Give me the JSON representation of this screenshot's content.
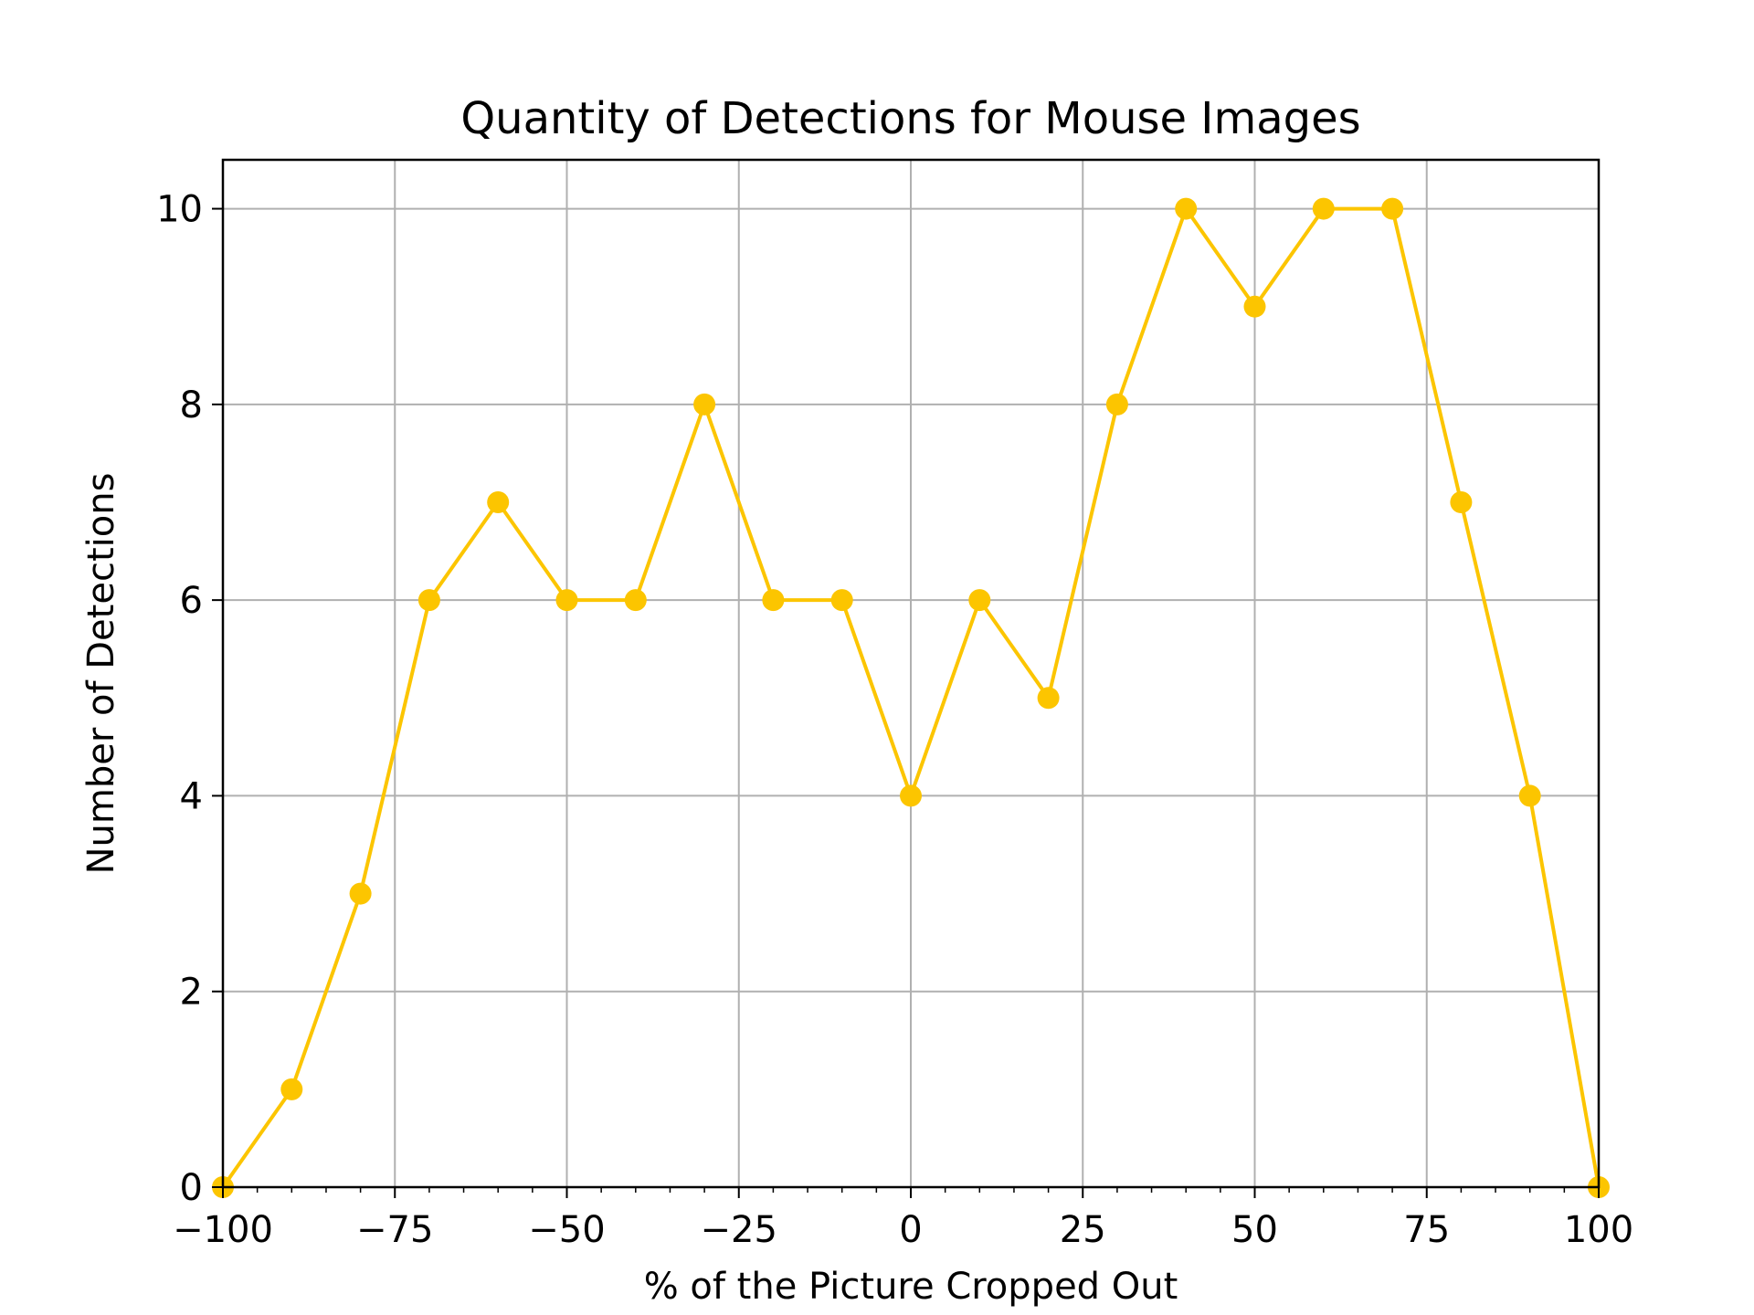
{
  "chart_data": {
    "type": "line",
    "title": "Quantity of Detections for Mouse Images",
    "xlabel": "% of the Picture Cropped Out",
    "ylabel": "Number of Detections",
    "xlim": [
      -100,
      100
    ],
    "ylim": [
      0,
      10.5
    ],
    "grid": true,
    "x_ticks": [
      -100,
      -75,
      -50,
      -25,
      0,
      25,
      50,
      75,
      100
    ],
    "x_tick_labels": [
      "−100",
      "−75",
      "−50",
      "−25",
      "0",
      "25",
      "50",
      "75",
      "100"
    ],
    "y_ticks": [
      0,
      2,
      4,
      6,
      8,
      10
    ],
    "y_tick_labels": [
      "0",
      "2",
      "4",
      "6",
      "8",
      "10"
    ],
    "series": [
      {
        "color": "#fcc500",
        "marker": "circle",
        "x": [
          -100,
          -90,
          -80,
          -70,
          -60,
          -50,
          -40,
          -30,
          -20,
          -10,
          0,
          10,
          20,
          30,
          40,
          50,
          60,
          70,
          80,
          90,
          100
        ],
        "values": [
          0,
          1,
          3,
          6,
          7,
          6,
          6,
          8,
          6,
          6,
          4,
          6,
          5,
          8,
          10,
          9,
          10,
          10,
          7,
          4,
          0
        ]
      }
    ]
  }
}
